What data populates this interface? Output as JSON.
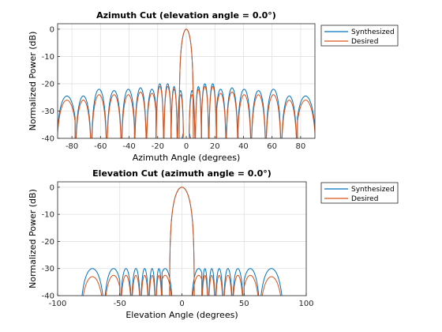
{
  "chart_data": [
    {
      "type": "line",
      "title": "Azimuth Cut (elevation angle = 0.0°)",
      "xlabel": "Azimuth Angle (degrees)",
      "ylabel": "Normalized Power (dB)",
      "xlim": [
        -90,
        90
      ],
      "ylim": [
        -40,
        2
      ],
      "xticks": [
        -80,
        -60,
        -40,
        -20,
        0,
        20,
        40,
        60,
        80
      ],
      "yticks": [
        0,
        -10,
        -20,
        -30,
        -40
      ],
      "grid": true,
      "legend_position": "outside-top-right",
      "pattern": {
        "main_lobe_width_deg": 5,
        "first_sidelobe_deg": 5,
        "sidelobe_peaks": {
          "x": [
            -83.5,
            -72,
            -61,
            -50.5,
            -40.5,
            -32,
            -24,
            -18.5,
            -13,
            -8.5,
            -4,
            4,
            8.5,
            13,
            18.5,
            24,
            32,
            40.5,
            50.5,
            61,
            72,
            83.5
          ],
          "synthesized": [
            -24.5,
            -24.5,
            -22,
            -22.5,
            -22,
            -21.5,
            -22,
            -20,
            -20,
            -21,
            -22.5,
            -22.5,
            -21,
            -20,
            -20,
            -22,
            -21.5,
            -22,
            -22.5,
            -22,
            -24.5,
            -24.5
          ],
          "desired": [
            -26,
            -26,
            -24,
            -24,
            -24,
            -23,
            -23.5,
            -21,
            -21,
            -22,
            -24,
            -24,
            -22,
            -21,
            -21,
            -23.5,
            -23,
            -24,
            -24,
            -24,
            -26,
            -26
          ]
        }
      },
      "series": [
        {
          "name": "Synthesized",
          "color": "#0072BD"
        },
        {
          "name": "Desired",
          "color": "#D95319"
        }
      ]
    },
    {
      "type": "line",
      "title": "Elevation Cut (azimuth angle = 0.0°)",
      "xlabel": "Elevation Angle (degrees)",
      "ylabel": "Normalized Power (dB)",
      "xlim": [
        -100,
        100
      ],
      "ylim": [
        -40,
        2
      ],
      "xticks": [
        -100,
        -50,
        0,
        50,
        100
      ],
      "yticks": [
        0,
        -10,
        -20,
        -30,
        -40
      ],
      "grid": true,
      "legend_position": "outside-top-right",
      "pattern": {
        "main_lobe_width_deg": 10,
        "first_sidelobe_deg": 10,
        "sidelobe_peaks": {
          "x": [
            -72,
            -55,
            -45,
            -37,
            -30,
            -24,
            -18.5,
            -13.5,
            13.5,
            18.5,
            24,
            30,
            37,
            45,
            55,
            72
          ],
          "synthesized": [
            -30,
            -30,
            -30,
            -30,
            -30,
            -30,
            -30,
            -30,
            -30,
            -30,
            -30,
            -30,
            -30,
            -30,
            -30,
            -30
          ],
          "desired": [
            -33,
            -32.5,
            -32.5,
            -32.5,
            -32.5,
            -32.5,
            -32.5,
            -32.5,
            -32.5,
            -32.5,
            -32.5,
            -32.5,
            -32.5,
            -32.5,
            -32.5,
            -33
          ]
        }
      },
      "series": [
        {
          "name": "Synthesized",
          "color": "#0072BD"
        },
        {
          "name": "Desired",
          "color": "#D95319"
        }
      ]
    }
  ]
}
